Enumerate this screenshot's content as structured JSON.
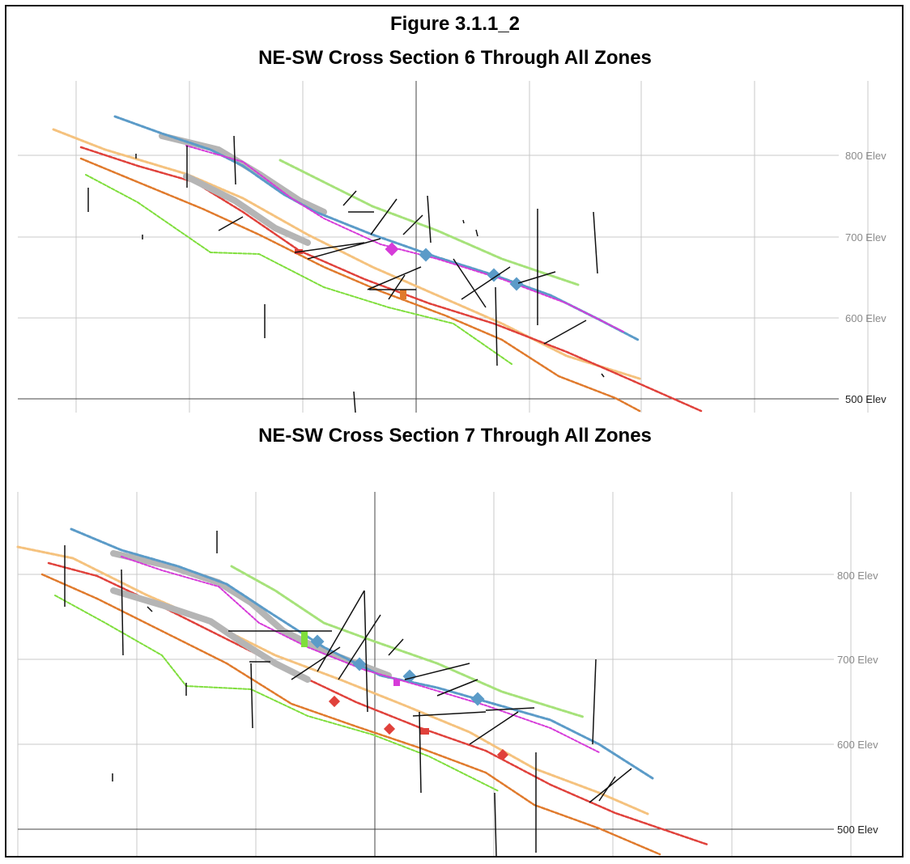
{
  "figure": {
    "title": "Figure 3.1.1_2"
  },
  "sections": [
    {
      "title": "NE-SW Cross Section 6 Through All Zones",
      "elevation_labels": [
        "800 Elev",
        "700 Elev",
        "600 Elev",
        "500 Elev"
      ]
    },
    {
      "title": "NE-SW Cross Section 7 Through All Zones",
      "elevation_labels": [
        "800 Elev",
        "700 Elev",
        "600 Elev",
        "500 Elev"
      ]
    }
  ],
  "colors": {
    "blue_zone": "#5b9bc8",
    "grey_zone": "#b5b5b5",
    "light_green_zone": "#a6e27a",
    "magenta_zone": "#d63bd9",
    "peach_zone": "#f5c27e",
    "red_zone": "#e0413b",
    "orange_zone": "#e07a2c",
    "green_zone": "#7fde3c",
    "drillhole": "#111111",
    "grid": "#c8c8c8"
  }
}
